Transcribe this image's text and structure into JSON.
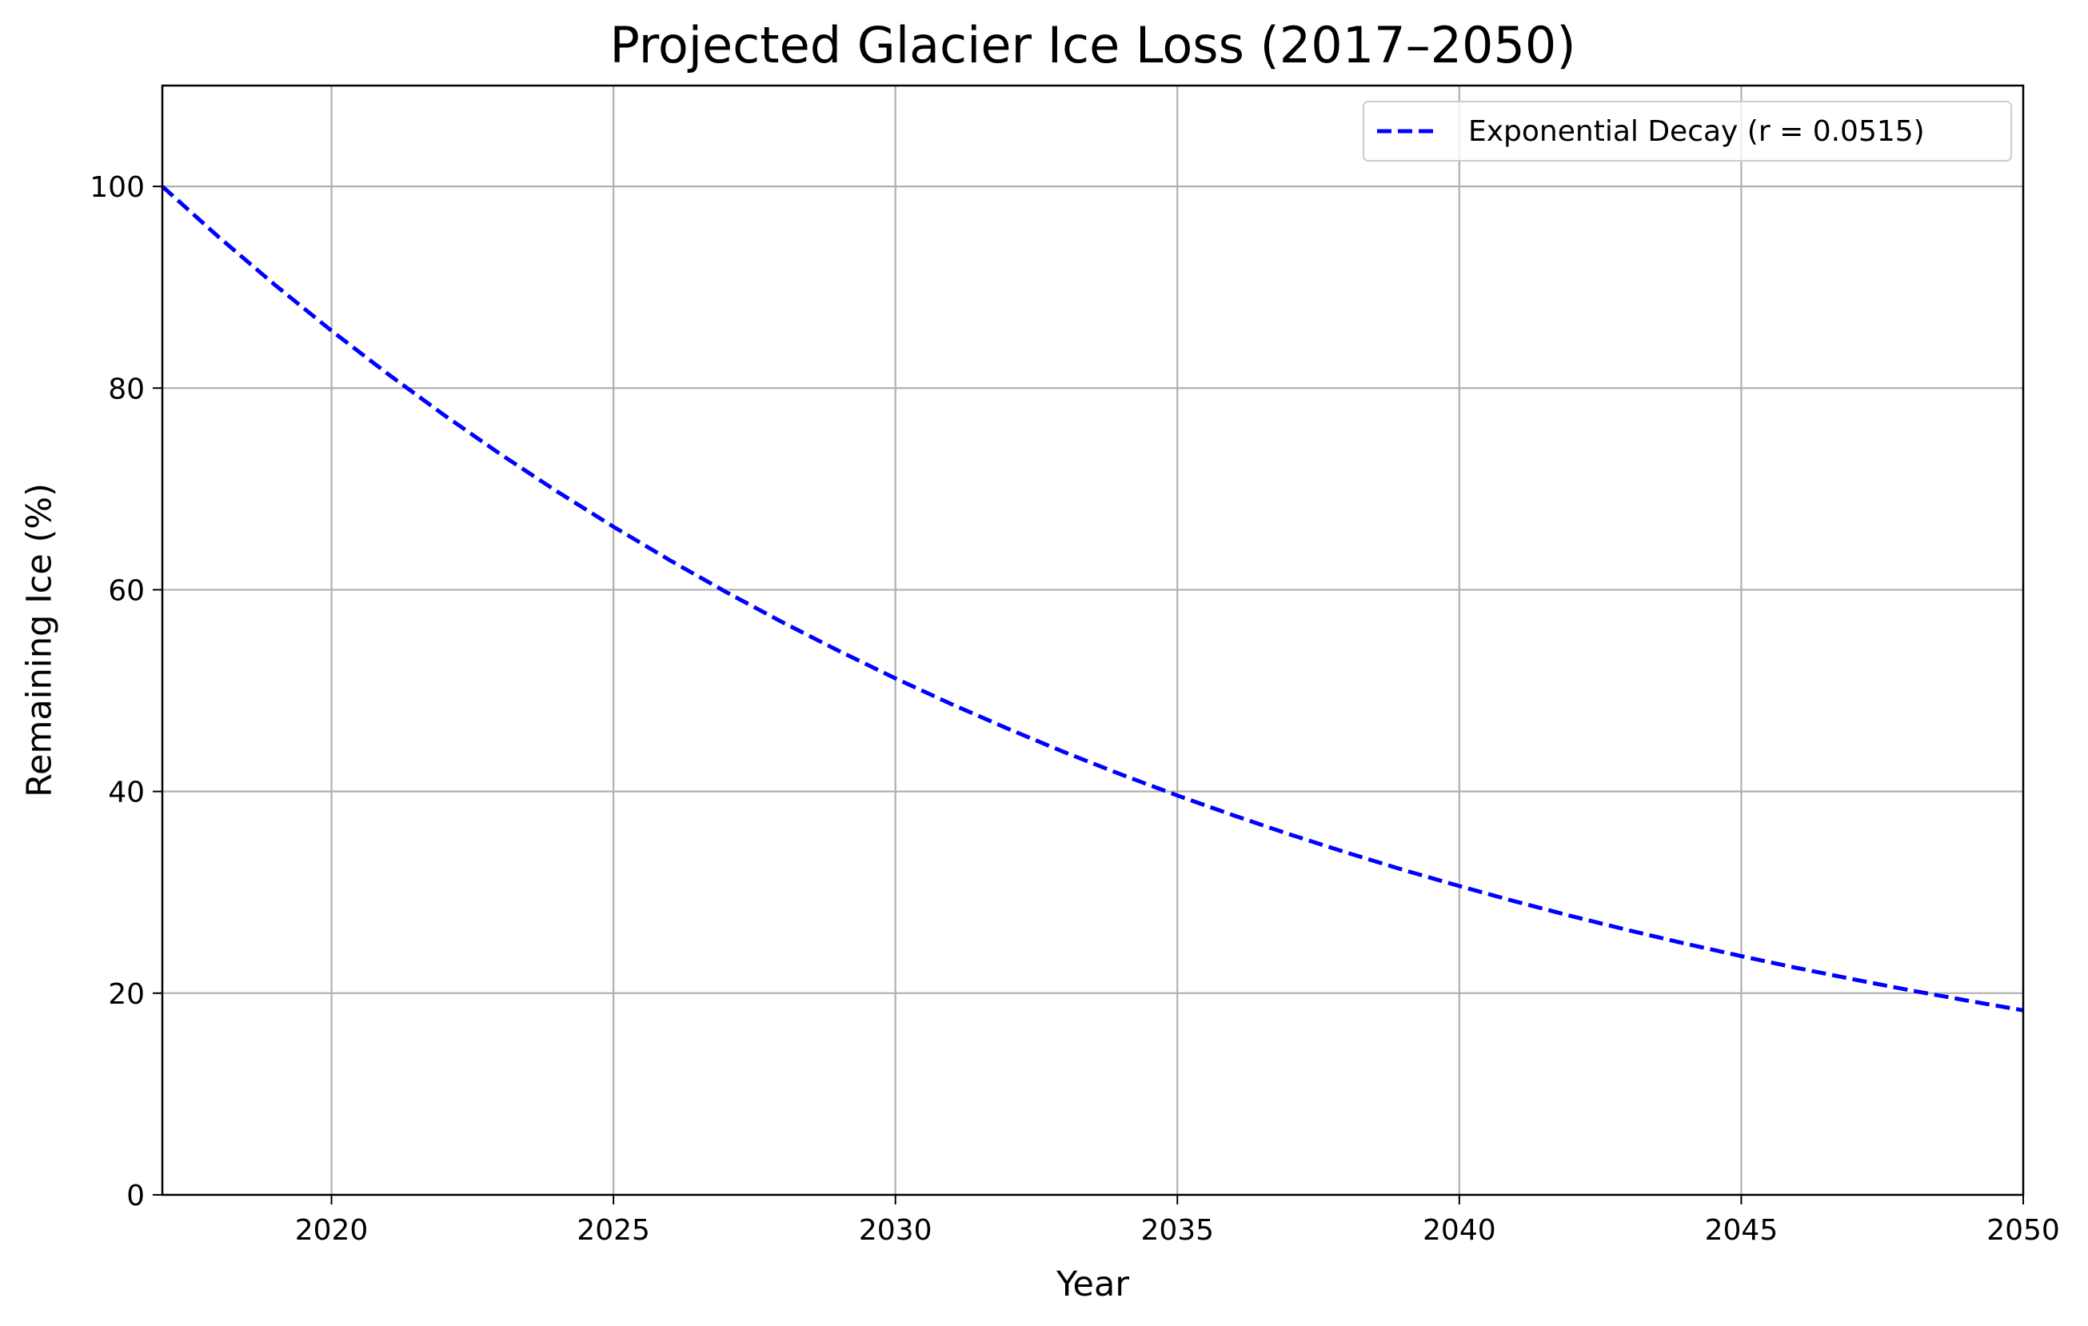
{
  "chart_data": {
    "type": "line",
    "title": "Projected Glacier Ice Loss (2017–2050)",
    "xlabel": "Year",
    "ylabel": "Remaining Ice (%)",
    "xlim": [
      2017,
      2050
    ],
    "ylim": [
      0,
      110
    ],
    "xticks": [
      2020,
      2025,
      2030,
      2035,
      2040,
      2045,
      2050
    ],
    "yticks": [
      0,
      20,
      40,
      60,
      80,
      100
    ],
    "grid": true,
    "legend_position": "upper right",
    "series": [
      {
        "name": "Exponential Decay (r = 0.0515)",
        "color": "#0000ff",
        "line_style": "dashed",
        "rate": 0.0515,
        "x": [
          2017,
          2018,
          2019,
          2020,
          2021,
          2022,
          2023,
          2024,
          2025,
          2026,
          2027,
          2028,
          2029,
          2030,
          2031,
          2032,
          2033,
          2034,
          2035,
          2036,
          2037,
          2038,
          2039,
          2040,
          2041,
          2042,
          2043,
          2044,
          2045,
          2046,
          2047,
          2048,
          2049,
          2050
        ],
        "y": [
          100.0,
          94.98,
          90.22,
          85.69,
          81.4,
          77.31,
          73.43,
          69.75,
          66.25,
          62.93,
          59.77,
          56.77,
          53.93,
          51.22,
          48.65,
          46.21,
          43.89,
          41.69,
          39.6,
          37.62,
          35.73,
          33.94,
          32.23,
          30.62,
          29.08,
          27.62,
          26.24,
          24.92,
          23.67,
          22.48,
          21.36,
          20.28,
          19.27,
          18.3
        ]
      }
    ]
  }
}
